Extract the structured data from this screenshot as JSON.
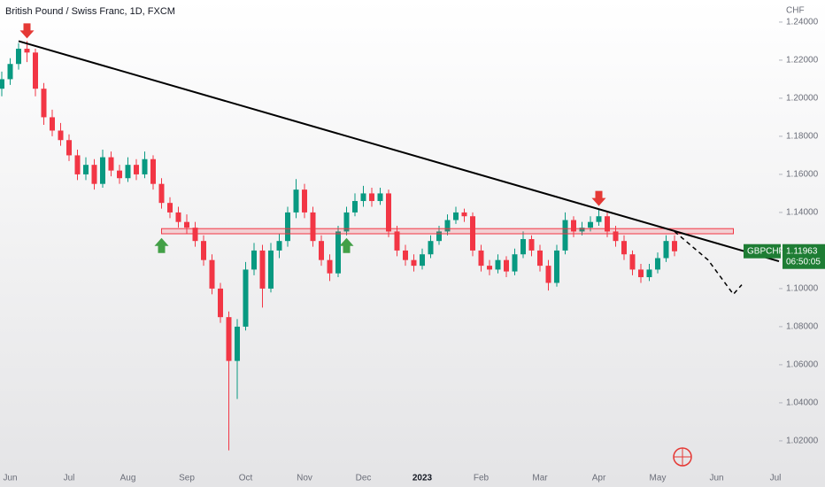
{
  "chart_data": {
    "type": "candlestick",
    "title": "British Pound / Swiss Franc, 1D, FXCM",
    "unit": "CHF",
    "categories": [
      null,
      "Jun",
      null,
      null,
      null,
      null,
      null,
      null,
      "Jul",
      null,
      null,
      null,
      null,
      null,
      null,
      "Aug",
      null,
      null,
      null,
      null,
      null,
      null,
      "Sep",
      null,
      null,
      null,
      null,
      null,
      null,
      "Oct",
      null,
      null,
      null,
      null,
      null,
      null,
      "Nov",
      null,
      null,
      null,
      null,
      null,
      null,
      "Dec",
      null,
      null,
      null,
      null,
      null,
      null,
      "2023",
      null,
      null,
      null,
      null,
      null,
      null,
      "Feb",
      null,
      null,
      null,
      null,
      null,
      null,
      "Mar",
      null,
      null,
      null,
      null,
      null,
      null,
      "Apr",
      null,
      null,
      null,
      null,
      null,
      null,
      "May",
      null,
      null,
      null,
      null,
      null,
      null,
      "Jun",
      null,
      null,
      null,
      null,
      null,
      null,
      "Jul"
    ],
    "candles": [
      [
        1.205,
        1.214,
        1.201,
        1.21
      ],
      [
        1.21,
        1.221,
        1.207,
        1.218
      ],
      [
        1.218,
        1.229,
        1.215,
        1.226
      ],
      [
        1.226,
        1.23,
        1.219,
        1.224
      ],
      [
        1.224,
        1.226,
        1.201,
        1.205
      ],
      [
        1.205,
        1.208,
        1.186,
        1.19
      ],
      [
        1.19,
        1.194,
        1.18,
        1.183
      ],
      [
        1.183,
        1.187,
        1.175,
        1.178
      ],
      [
        1.178,
        1.181,
        1.167,
        1.17
      ],
      [
        1.17,
        1.173,
        1.157,
        1.16
      ],
      [
        1.16,
        1.169,
        1.157,
        1.165
      ],
      [
        1.165,
        1.168,
        1.152,
        1.155
      ],
      [
        1.155,
        1.173,
        1.153,
        1.169
      ],
      [
        1.169,
        1.172,
        1.159,
        1.162
      ],
      [
        1.162,
        1.165,
        1.155,
        1.158
      ],
      [
        1.158,
        1.169,
        1.156,
        1.165
      ],
      [
        1.165,
        1.168,
        1.157,
        1.16
      ],
      [
        1.16,
        1.172,
        1.158,
        1.168
      ],
      [
        1.168,
        1.17,
        1.152,
        1.155
      ],
      [
        1.155,
        1.158,
        1.142,
        1.145
      ],
      [
        1.145,
        1.148,
        1.137,
        1.14
      ],
      [
        1.14,
        1.143,
        1.132,
        1.135
      ],
      [
        1.135,
        1.139,
        1.129,
        1.132
      ],
      [
        1.132,
        1.135,
        1.122,
        1.125
      ],
      [
        1.125,
        1.128,
        1.112,
        1.115
      ],
      [
        1.115,
        1.118,
        1.097,
        1.1
      ],
      [
        1.1,
        1.103,
        1.082,
        1.085
      ],
      [
        1.085,
        1.088,
        1.015,
        1.062
      ],
      [
        1.062,
        1.084,
        1.042,
        1.08
      ],
      [
        1.08,
        1.114,
        1.078,
        1.11
      ],
      [
        1.11,
        1.124,
        1.107,
        1.12
      ],
      [
        1.12,
        1.123,
        1.09,
        1.1
      ],
      [
        1.1,
        1.124,
        1.098,
        1.12
      ],
      [
        1.12,
        1.129,
        1.116,
        1.125
      ],
      [
        1.125,
        1.143,
        1.122,
        1.14
      ],
      [
        1.14,
        1.1575,
        1.137,
        1.152
      ],
      [
        1.152,
        1.155,
        1.137,
        1.14
      ],
      [
        1.14,
        1.143,
        1.122,
        1.125
      ],
      [
        1.125,
        1.128,
        1.112,
        1.115
      ],
      [
        1.115,
        1.118,
        1.104,
        1.108
      ],
      [
        1.108,
        1.133,
        1.106,
        1.13
      ],
      [
        1.13,
        1.143,
        1.128,
        1.14
      ],
      [
        1.14,
        1.15,
        1.138,
        1.146
      ],
      [
        1.146,
        1.154,
        1.143,
        1.15
      ],
      [
        1.15,
        1.153,
        1.143,
        1.146
      ],
      [
        1.146,
        1.153,
        1.144,
        1.15
      ],
      [
        1.15,
        1.152,
        1.127,
        1.13
      ],
      [
        1.13,
        1.133,
        1.117,
        1.12
      ],
      [
        1.12,
        1.123,
        1.112,
        1.115
      ],
      [
        1.115,
        1.118,
        1.109,
        1.112
      ],
      [
        1.112,
        1.121,
        1.11,
        1.118
      ],
      [
        1.118,
        1.128,
        1.116,
        1.125
      ],
      [
        1.125,
        1.133,
        1.123,
        1.13
      ],
      [
        1.13,
        1.139,
        1.128,
        1.136
      ],
      [
        1.136,
        1.143,
        1.134,
        1.14
      ],
      [
        1.14,
        1.142,
        1.135,
        1.138
      ],
      [
        1.138,
        1.14,
        1.117,
        1.12
      ],
      [
        1.12,
        1.123,
        1.109,
        1.112
      ],
      [
        1.112,
        1.115,
        1.107,
        1.11
      ],
      [
        1.11,
        1.118,
        1.108,
        1.115
      ],
      [
        1.115,
        1.117,
        1.106,
        1.109
      ],
      [
        1.109,
        1.121,
        1.107,
        1.118
      ],
      [
        1.118,
        1.13,
        1.116,
        1.126
      ],
      [
        1.126,
        1.128,
        1.117,
        1.12
      ],
      [
        1.12,
        1.123,
        1.109,
        1.112
      ],
      [
        1.112,
        1.115,
        1.099,
        1.103
      ],
      [
        1.103,
        1.123,
        1.101,
        1.12
      ],
      [
        1.12,
        1.14,
        1.118,
        1.136
      ],
      [
        1.136,
        1.138,
        1.127,
        1.13
      ],
      [
        1.13,
        1.135,
        1.128,
        1.132
      ],
      [
        1.132,
        1.138,
        1.13,
        1.135
      ],
      [
        1.135,
        1.142,
        1.133,
        1.138
      ],
      [
        1.138,
        1.14,
        1.127,
        1.13
      ],
      [
        1.13,
        1.133,
        1.122,
        1.125
      ],
      [
        1.125,
        1.128,
        1.115,
        1.118
      ],
      [
        1.118,
        1.12,
        1.107,
        1.11
      ],
      [
        1.11,
        1.113,
        1.103,
        1.106
      ],
      [
        1.106,
        1.113,
        1.104,
        1.11
      ],
      [
        1.11,
        1.119,
        1.108,
        1.116
      ],
      [
        1.116,
        1.128,
        1.114,
        1.125
      ],
      [
        1.125,
        1.128,
        1.117,
        1.1196
      ],
      null,
      null,
      null,
      null,
      null,
      null,
      null,
      null,
      null,
      null,
      null,
      null
    ],
    "up_color": "#089981",
    "down_color": "#f23645",
    "ylim": [
      1.0074,
      1.2516
    ],
    "yticks": [
      {
        "value": 1.02,
        "label": "1.02000"
      },
      {
        "value": 1.04,
        "label": "1.04000"
      },
      {
        "value": 1.06,
        "label": "1.06000"
      },
      {
        "value": 1.08,
        "label": "1.08000"
      },
      {
        "value": 1.1,
        "label": "1.10000"
      },
      {
        "value": 1.12,
        "label": "1.12000"
      },
      {
        "value": 1.14,
        "label": "1.14000"
      },
      {
        "value": 1.16,
        "label": "1.16000"
      },
      {
        "value": 1.18,
        "label": "1.18000"
      },
      {
        "value": 1.2,
        "label": "1.20000"
      },
      {
        "value": 1.22,
        "label": "1.22000"
      },
      {
        "value": 1.24,
        "label": "1.24000"
      }
    ],
    "trendline": [
      [
        2,
        1.23
      ],
      [
        88,
        1.12
      ]
    ],
    "zone": {
      "from": 19,
      "to": 87,
      "low": 1.1288,
      "high": 1.1315
    },
    "projection": [
      [
        80,
        1.13
      ],
      [
        84,
        1.115
      ],
      [
        87,
        1.097
      ],
      [
        88,
        1.102
      ]
    ],
    "markers": [
      {
        "index": 3,
        "value": 1.23,
        "direction": "down",
        "color": "#e53935"
      },
      {
        "index": 71,
        "value": 1.142,
        "direction": "down",
        "color": "#e53935"
      },
      {
        "index": 19,
        "value": 1.128,
        "direction": "up",
        "color": "#43a047"
      },
      {
        "index": 41,
        "value": 1.128,
        "direction": "up",
        "color": "#43a047"
      }
    ],
    "symbol": "GBPCHF",
    "last_price": 1.11963,
    "countdown": "06:50:05"
  }
}
